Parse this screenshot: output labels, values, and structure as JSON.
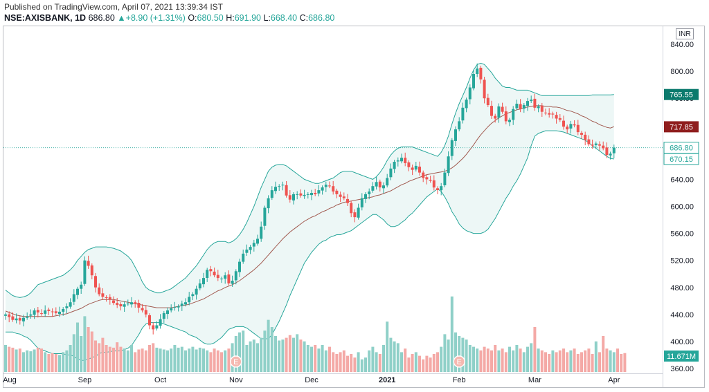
{
  "header": {
    "published": "Published on TradingView.com, April 07, 2021 13:39:34 IST",
    "symbol": "NSE:AXISBANK, 1D",
    "last": "686.80",
    "change": "+8.90 (+1.31%)",
    "o_label": "O:",
    "o_value": "680.50",
    "h_label": "H:",
    "h_value": "691.90",
    "l_label": "L:",
    "l_value": "668.40",
    "c_label": "C:",
    "c_value": "686.80"
  },
  "currency": "INR",
  "colors": {
    "up": "#26a69a",
    "down": "#ef5350",
    "band_line": "#26a69a",
    "band_fill": "#e6f4f2",
    "basis_line": "#a1594f",
    "volume_up": "#8fd0c8",
    "volume_down": "#f4a9a6",
    "tag_upper": "#0b7a6d",
    "tag_basis": "#8f1d1d"
  },
  "chart_data": {
    "type": "candlestick",
    "symbol": "NSE:AXISBANK",
    "interval": "1D",
    "y_ticks": [
      "840.00",
      "800.00",
      "760.00",
      "720.00",
      "680.00",
      "640.00",
      "600.00",
      "560.00",
      "520.00",
      "480.00",
      "440.00",
      "400.00",
      "360.00"
    ],
    "ylim": [
      360,
      840
    ],
    "x_ticks": [
      "Aug",
      "Sep",
      "Oct",
      "Nov",
      "Dec",
      "2021",
      "Feb",
      "Mar",
      "Apr"
    ],
    "tags": [
      {
        "label": "765.55",
        "value": 765.55,
        "kind": "upper"
      },
      {
        "label": "717.85",
        "value": 717.85,
        "kind": "basis"
      },
      {
        "label": "686.80",
        "value": 686.8,
        "kind": "last"
      },
      {
        "label": "670.15",
        "value": 670.15,
        "kind": "lower"
      },
      {
        "label": "11.671M",
        "kind": "volume"
      }
    ],
    "earnings_markers": [
      {
        "label": "E",
        "index": 64
      },
      {
        "label": "E",
        "index": 126
      }
    ],
    "month_starts": [
      {
        "label": "Aug",
        "index": 0
      },
      {
        "label": "Sep",
        "index": 22
      },
      {
        "label": "Oct",
        "index": 43
      },
      {
        "label": "Nov",
        "index": 64
      },
      {
        "label": "Dec",
        "index": 85
      },
      {
        "label": "2021",
        "index": 106
      },
      {
        "label": "Feb",
        "index": 126
      },
      {
        "label": "Mar",
        "index": 147
      },
      {
        "label": "Apr",
        "index": 169
      }
    ],
    "close": [
      440,
      436,
      432,
      434,
      431,
      435,
      437,
      440,
      446,
      443,
      441,
      446,
      445,
      444,
      442,
      444,
      448,
      452,
      458,
      470,
      478,
      484,
      520,
      512,
      498,
      480,
      470,
      466,
      465,
      462,
      457,
      454,
      452,
      455,
      456,
      458,
      456,
      450,
      446,
      440,
      424,
      418,
      424,
      433,
      442,
      446,
      449,
      451,
      452,
      456,
      458,
      466,
      470,
      478,
      486,
      494,
      506,
      504,
      498,
      494,
      493,
      498,
      486,
      490,
      504,
      518,
      530,
      536,
      540,
      546,
      552,
      570,
      598,
      612,
      624,
      629,
      630,
      632,
      616,
      610,
      618,
      618,
      616,
      617,
      618,
      620,
      618,
      624,
      628,
      632,
      630,
      622,
      618,
      614,
      612,
      605,
      590,
      584,
      598,
      612,
      618,
      622,
      630,
      636,
      628,
      631,
      642,
      656,
      666,
      668,
      672,
      664,
      658,
      654,
      660,
      650,
      642,
      640,
      638,
      628,
      624,
      630,
      650,
      674,
      698,
      714,
      726,
      746,
      758,
      776,
      796,
      804,
      788,
      760,
      750,
      734,
      730,
      748,
      740,
      726,
      728,
      744,
      752,
      744,
      750,
      756,
      758,
      746,
      748,
      740,
      738,
      736,
      736,
      730,
      728,
      718,
      714,
      722,
      720,
      710,
      706,
      698,
      692,
      690,
      693,
      690,
      686,
      676,
      678,
      687
    ],
    "basis": [
      445,
      443,
      441,
      439,
      438,
      437,
      437,
      437,
      437,
      437,
      437,
      437,
      437,
      437,
      438,
      439,
      440,
      441,
      443,
      445,
      447,
      449,
      452,
      455,
      457,
      459,
      461,
      462,
      462,
      462,
      462,
      461,
      460,
      459,
      458,
      457,
      456,
      455,
      454,
      453,
      452,
      451,
      450,
      450,
      450,
      450,
      450,
      451,
      452,
      453,
      454,
      455,
      457,
      459,
      461,
      463,
      466,
      469,
      472,
      475,
      477,
      480,
      482,
      484,
      487,
      490,
      494,
      498,
      502,
      506,
      511,
      516,
      522,
      528,
      534,
      540,
      546,
      552,
      557,
      562,
      566,
      570,
      574,
      578,
      581,
      584,
      586,
      589,
      592,
      594,
      597,
      599,
      602,
      604,
      606,
      607,
      608,
      609,
      610,
      611,
      612,
      613,
      614,
      616,
      617,
      619,
      621,
      623,
      626,
      629,
      632,
      634,
      637,
      639,
      641,
      643,
      645,
      647,
      648,
      649,
      650,
      651,
      652,
      654,
      657,
      661,
      666,
      671,
      677,
      684,
      691,
      699,
      706,
      712,
      718,
      723,
      727,
      731,
      734,
      737,
      739,
      741,
      743,
      744,
      746,
      747,
      748,
      749,
      749,
      749,
      748,
      748,
      747,
      747,
      746,
      744,
      742,
      741,
      739,
      737,
      734,
      732,
      729,
      726,
      724,
      721,
      719,
      717,
      716,
      718
    ],
    "upper": [
      476,
      472,
      468,
      466,
      465,
      466,
      468,
      472,
      478,
      484,
      486,
      488,
      490,
      492,
      494,
      496,
      498,
      502,
      506,
      512,
      520,
      526,
      532,
      536,
      538,
      540,
      540,
      540,
      540,
      539,
      538,
      536,
      534,
      530,
      526,
      520,
      510,
      500,
      488,
      480,
      476,
      474,
      472,
      472,
      474,
      476,
      478,
      482,
      486,
      490,
      494,
      500,
      506,
      512,
      520,
      528,
      536,
      542,
      546,
      548,
      548,
      548,
      546,
      548,
      552,
      558,
      566,
      576,
      588,
      600,
      614,
      628,
      640,
      652,
      658,
      661,
      662,
      662,
      660,
      656,
      652,
      648,
      644,
      640,
      638,
      636,
      634,
      634,
      636,
      638,
      640,
      642,
      646,
      650,
      652,
      652,
      652,
      650,
      648,
      646,
      644,
      642,
      640,
      644,
      650,
      658,
      668,
      676,
      682,
      686,
      688,
      688,
      688,
      688,
      686,
      684,
      682,
      680,
      678,
      676,
      674,
      680,
      690,
      704,
      722,
      738,
      752,
      764,
      776,
      790,
      802,
      810,
      812,
      810,
      804,
      798,
      790,
      784,
      778,
      776,
      776,
      774,
      772,
      772,
      772,
      772,
      770,
      768,
      766,
      764,
      764,
      764,
      764,
      764,
      764,
      764,
      764,
      764,
      764,
      764,
      764,
      764,
      764,
      765,
      765,
      765,
      765,
      765,
      765,
      765.55
    ],
    "lower": [
      414,
      414,
      414,
      412,
      411,
      408,
      406,
      402,
      396,
      390,
      388,
      386,
      384,
      382,
      382,
      382,
      382,
      380,
      380,
      378,
      374,
      372,
      372,
      374,
      376,
      378,
      382,
      384,
      384,
      385,
      386,
      386,
      386,
      388,
      390,
      394,
      402,
      410,
      420,
      426,
      428,
      428,
      428,
      428,
      426,
      424,
      422,
      420,
      418,
      416,
      414,
      410,
      408,
      406,
      402,
      398,
      396,
      396,
      398,
      402,
      406,
      412,
      418,
      420,
      422,
      422,
      422,
      420,
      416,
      412,
      408,
      404,
      404,
      404,
      410,
      420,
      430,
      442,
      454,
      468,
      480,
      492,
      504,
      516,
      524,
      532,
      538,
      544,
      548,
      550,
      554,
      556,
      558,
      558,
      560,
      562,
      564,
      568,
      572,
      576,
      580,
      584,
      588,
      588,
      584,
      580,
      574,
      570,
      570,
      572,
      576,
      580,
      586,
      590,
      596,
      602,
      608,
      614,
      618,
      622,
      626,
      622,
      614,
      604,
      592,
      584,
      574,
      568,
      564,
      562,
      560,
      560,
      560,
      562,
      566,
      574,
      582,
      592,
      602,
      612,
      620,
      630,
      638,
      648,
      660,
      672,
      690,
      704,
      708,
      710,
      712,
      712,
      712,
      712,
      711,
      710,
      708,
      706,
      704,
      702,
      700,
      698,
      694,
      690,
      686,
      682,
      678,
      674,
      671,
      670.15
    ],
    "volume_scale": [
      0.3,
      0.28,
      0.27,
      0.25,
      0.26,
      0.22,
      0.24,
      0.23,
      0.25,
      0.27,
      0.26,
      0.22,
      0.2,
      0.21,
      0.2,
      0.19,
      0.22,
      0.24,
      0.3,
      0.42,
      0.55,
      0.4,
      0.62,
      0.5,
      0.45,
      0.35,
      0.32,
      0.38,
      0.3,
      0.28,
      0.27,
      0.33,
      0.28,
      0.26,
      0.24,
      0.3,
      0.22,
      0.25,
      0.26,
      0.24,
      0.3,
      0.32,
      0.27,
      0.26,
      0.25,
      0.24,
      0.26,
      0.3,
      0.27,
      0.28,
      0.24,
      0.26,
      0.28,
      0.25,
      0.27,
      0.26,
      0.24,
      0.22,
      0.26,
      0.24,
      0.22,
      0.24,
      0.26,
      0.32,
      0.4,
      0.44,
      0.46,
      0.3,
      0.34,
      0.36,
      0.32,
      0.38,
      0.46,
      0.58,
      0.5,
      0.4,
      0.35,
      0.36,
      0.38,
      0.41,
      0.38,
      0.42,
      0.36,
      0.34,
      0.3,
      0.28,
      0.3,
      0.26,
      0.3,
      0.24,
      0.28,
      0.22,
      0.2,
      0.22,
      0.24,
      0.18,
      0.2,
      0.16,
      0.22,
      0.14,
      0.16,
      0.24,
      0.28,
      0.22,
      0.2,
      0.3,
      0.56,
      0.38,
      0.34,
      0.32,
      0.22,
      0.26,
      0.16,
      0.2,
      0.22,
      0.18,
      0.14,
      0.18,
      0.16,
      0.2,
      0.22,
      0.28,
      0.42,
      0.36,
      0.84,
      0.44,
      0.4,
      0.38,
      0.36,
      0.3,
      0.28,
      0.26,
      0.24,
      0.28,
      0.26,
      0.24,
      0.3,
      0.24,
      0.26,
      0.22,
      0.28,
      0.24,
      0.3,
      0.26,
      0.22,
      0.28,
      0.32,
      0.5,
      0.26,
      0.24,
      0.22,
      0.2,
      0.24,
      0.22,
      0.24,
      0.26,
      0.22,
      0.24,
      0.26,
      0.2,
      0.22,
      0.24,
      0.26,
      0.2,
      0.34,
      0.22,
      0.4,
      0.26,
      0.24,
      0.22,
      0.26,
      0.2,
      0.21
    ]
  }
}
